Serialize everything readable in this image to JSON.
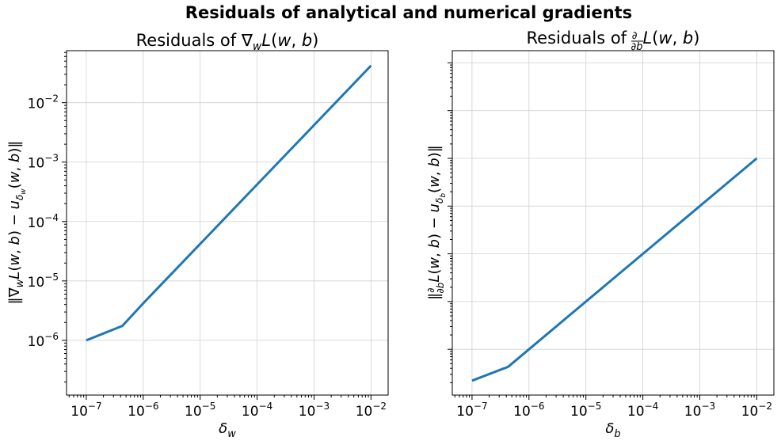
{
  "figure": {
    "suptitle": "Residuals of analytical and numerical gradients"
  },
  "chart_data": [
    {
      "type": "line",
      "title": "Residuals of ∇wL(w, b)",
      "xlabel": "δw",
      "ylabel": "‖∇wL(w, b) − uδw(w, b)‖",
      "xscale": "log",
      "yscale": "log",
      "xlim": [
        4.5e-08,
        0.02
      ],
      "ylim": [
        1.2e-07,
        0.075
      ],
      "grid": true,
      "xticks": [
        1e-07,
        1e-06,
        1e-05,
        0.0001,
        0.001,
        0.01
      ],
      "xtick_labels": [
        [
          "10",
          "−7"
        ],
        [
          "10",
          "−6"
        ],
        [
          "10",
          "−5"
        ],
        [
          "10",
          "−4"
        ],
        [
          "10",
          "−3"
        ],
        [
          "10",
          "−2"
        ]
      ],
      "yticks": [
        1e-06,
        1e-05,
        0.0001,
        0.001,
        0.01
      ],
      "ytick_labels": [
        [
          "10",
          "−6"
        ],
        [
          "10",
          "−5"
        ],
        [
          "10",
          "−4"
        ],
        [
          "10",
          "−3"
        ],
        [
          "10",
          "−2"
        ]
      ],
      "series": [
        {
          "color": "#1f77b4",
          "x": [
            1e-07,
            4.3e-07,
            1e-06,
            1e-05,
            0.0001,
            0.001,
            0.01
          ],
          "y": [
            1e-06,
            1.75e-06,
            4.2e-06,
            4.2e-05,
            0.00042,
            0.0042,
            0.042
          ]
        }
      ]
    },
    {
      "type": "line",
      "title": "Residuals of ∂/∂b L(w, b)",
      "xlabel": "δb",
      "ylabel": "‖∂/∂b L(w, b) − uδb(w, b)‖",
      "xscale": "log",
      "yscale": "log",
      "xlim": [
        4.5e-08,
        0.02
      ],
      "ylim": [
        1.1e-08,
        0.18
      ],
      "grid": true,
      "xticks": [
        1e-07,
        1e-06,
        1e-05,
        0.0001,
        0.001,
        0.01
      ],
      "xtick_labels": [
        [
          "10",
          "−7"
        ],
        [
          "10",
          "−6"
        ],
        [
          "10",
          "−5"
        ],
        [
          "10",
          "−4"
        ],
        [
          "10",
          "−3"
        ],
        [
          "10",
          "−2"
        ]
      ],
      "yticks": [
        1e-07,
        1e-06,
        1e-05,
        0.0001,
        0.001,
        0.01,
        0.1
      ],
      "ytick_labels": [],
      "series": [
        {
          "color": "#1f77b4",
          "x": [
            1e-07,
            4.3e-07,
            1e-06,
            1e-05,
            0.0001,
            0.001,
            0.01
          ],
          "y": [
            2.2e-08,
            4.3e-08,
            1e-07,
            1e-06,
            1e-05,
            0.0001,
            0.001
          ]
        }
      ]
    }
  ]
}
